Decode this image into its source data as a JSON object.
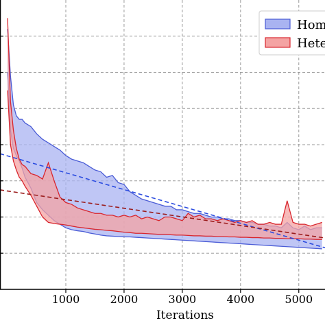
{
  "chart_data": {
    "type": "area",
    "xlabel": "Iterations",
    "ylabel": "",
    "xlim": [
      -130,
      5450
    ],
    "ylim": [
      0,
      8
    ],
    "x_ticks": [
      1000,
      2000,
      3000,
      4000,
      5000
    ],
    "x_tick_labels": [
      "1000",
      "2000",
      "3000",
      "4000",
      "5000"
    ],
    "y_gridlines": [
      1,
      2,
      3,
      4,
      5,
      6,
      7
    ],
    "grid": true,
    "grid_style": "dashed",
    "legend_position": "top-right",
    "series": [
      {
        "name": "Hom",
        "color": "#4a5cd6",
        "fill": "#a9b3f1",
        "x": [
          0,
          50,
          100,
          150,
          200,
          250,
          300,
          400,
          500,
          600,
          700,
          800,
          900,
          1000,
          1100,
          1200,
          1300,
          1400,
          1500,
          1600,
          1700,
          1800,
          1900,
          2000,
          2100,
          2200,
          2300,
          2400,
          2500,
          2600,
          2700,
          2800,
          2900,
          3000,
          3100,
          3200,
          3300,
          3400,
          3500,
          3600,
          3700,
          3800,
          3900,
          4000,
          4100,
          4200,
          4300,
          4400,
          4500,
          4600,
          4700,
          4800,
          4900,
          5000,
          5100,
          5200,
          5300,
          5400
        ],
        "upper": [
          7.2,
          5.9,
          5.1,
          4.8,
          4.7,
          4.7,
          4.6,
          4.5,
          4.3,
          4.15,
          4.05,
          3.95,
          3.85,
          3.7,
          3.6,
          3.55,
          3.5,
          3.4,
          3.3,
          3.25,
          3.1,
          3.15,
          2.95,
          2.9,
          2.7,
          2.6,
          2.5,
          2.45,
          2.4,
          2.35,
          2.3,
          2.3,
          2.2,
          2.2,
          2.15,
          2.1,
          2.1,
          2.05,
          2.0,
          2.0,
          1.95,
          1.95,
          1.9,
          1.9,
          1.85,
          1.85,
          1.8,
          1.8,
          1.75,
          1.75,
          1.7,
          1.85,
          1.7,
          1.65,
          1.75,
          1.65,
          1.7,
          1.7
        ],
        "lower": [
          6.0,
          4.4,
          3.9,
          3.7,
          3.55,
          3.35,
          3.1,
          2.8,
          2.4,
          2.2,
          2.05,
          1.9,
          1.8,
          1.7,
          1.65,
          1.62,
          1.6,
          1.56,
          1.53,
          1.5,
          1.48,
          1.47,
          1.46,
          1.45,
          1.45,
          1.44,
          1.43,
          1.42,
          1.41,
          1.4,
          1.39,
          1.38,
          1.37,
          1.36,
          1.35,
          1.34,
          1.33,
          1.32,
          1.31,
          1.3,
          1.29,
          1.28,
          1.27,
          1.26,
          1.25,
          1.24,
          1.23,
          1.22,
          1.21,
          1.2,
          1.19,
          1.18,
          1.17,
          1.16,
          1.15,
          1.14,
          1.13,
          1.12
        ],
        "trend": {
          "x": [
            -130,
            5450
          ],
          "y": [
            3.75,
            1.15
          ]
        }
      },
      {
        "name": "Hete",
        "color": "#d8262e",
        "fill": "#f4a3a3",
        "x": [
          0,
          50,
          100,
          150,
          200,
          250,
          300,
          400,
          500,
          600,
          700,
          800,
          900,
          1000,
          1100,
          1200,
          1300,
          1400,
          1500,
          1600,
          1700,
          1800,
          1900,
          2000,
          2100,
          2200,
          2300,
          2400,
          2500,
          2600,
          2700,
          2800,
          2900,
          3000,
          3100,
          3200,
          3300,
          3400,
          3500,
          3600,
          3700,
          3800,
          3900,
          4000,
          4100,
          4200,
          4300,
          4400,
          4500,
          4600,
          4700,
          4800,
          4900,
          5000,
          5100,
          5200,
          5300,
          5400
        ],
        "upper": [
          7.5,
          5.2,
          4.4,
          3.9,
          3.6,
          3.45,
          3.4,
          3.2,
          3.15,
          3.05,
          3.5,
          3.0,
          2.55,
          2.4,
          2.35,
          2.25,
          2.2,
          2.15,
          2.1,
          2.1,
          2.05,
          2.05,
          2.0,
          2.05,
          2.0,
          2.05,
          1.95,
          2.0,
          1.95,
          1.9,
          2.0,
          2.0,
          1.95,
          1.9,
          2.1,
          2.0,
          2.05,
          1.95,
          1.95,
          1.9,
          1.95,
          1.9,
          1.85,
          1.9,
          1.85,
          1.9,
          1.8,
          1.8,
          1.85,
          1.8,
          1.8,
          2.45,
          1.85,
          1.8,
          1.8,
          1.75,
          1.8,
          1.85
        ],
        "lower": [
          5.5,
          4.0,
          3.55,
          3.3,
          3.1,
          3.0,
          2.85,
          2.6,
          2.3,
          2.0,
          1.85,
          1.82,
          1.8,
          1.78,
          1.75,
          1.72,
          1.7,
          1.68,
          1.66,
          1.65,
          1.63,
          1.62,
          1.6,
          1.58,
          1.57,
          1.55,
          1.55,
          1.54,
          1.53,
          1.52,
          1.52,
          1.51,
          1.5,
          1.5,
          1.49,
          1.48,
          1.48,
          1.47,
          1.47,
          1.46,
          1.46,
          1.45,
          1.45,
          1.44,
          1.44,
          1.43,
          1.43,
          1.42,
          1.42,
          1.41,
          1.41,
          1.4,
          1.4,
          1.4,
          1.39,
          1.39,
          1.38,
          1.38
        ],
        "trend": {
          "x": [
            -130,
            5450
          ],
          "y": [
            2.75,
            1.42
          ]
        }
      }
    ]
  }
}
